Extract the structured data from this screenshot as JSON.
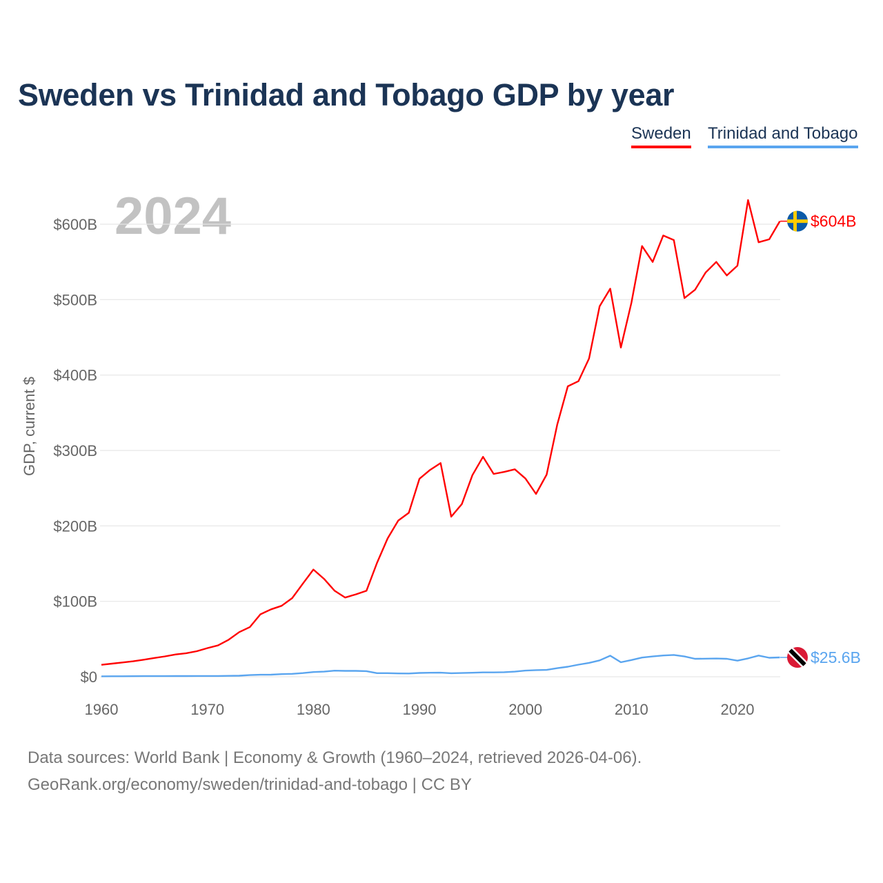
{
  "title": "Sweden vs Trinidad and Tobago GDP by year",
  "year_label": "2024",
  "footer": {
    "line1": "Data sources: World Bank | Economy & Growth (1960–2024, retrieved 2026-04-06).",
    "line2": "GeoRank.org/economy/sweden/trinidad-and-tobago | CC BY"
  },
  "chart_data": {
    "type": "line",
    "title": "Sweden vs Trinidad and Tobago GDP by year",
    "xlabel": "",
    "ylabel": "GDP, current $",
    "xlim": [
      1960,
      2024
    ],
    "ylim": [
      0,
      650
    ],
    "grid": true,
    "legend_placement": "top-right",
    "x_ticks": [
      1960,
      1970,
      1980,
      1990,
      2000,
      2010,
      2020
    ],
    "x_tick_labels": [
      "1960",
      "1970",
      "1980",
      "1990",
      "2000",
      "2010",
      "2020"
    ],
    "y_ticks": [
      0,
      100,
      200,
      300,
      400,
      500,
      600
    ],
    "y_tick_labels": [
      "$0",
      "$100B",
      "$200B",
      "$300B",
      "$400B",
      "$500B",
      "$600B"
    ],
    "units": "billion USD",
    "series": [
      {
        "name": "Sweden",
        "color": "#ff0000",
        "end_label": "$604B",
        "flag": "sweden-flag",
        "start_year": 1960,
        "values": [
          15.8,
          17.4,
          18.9,
          20.5,
          22.6,
          24.9,
          27.0,
          29.5,
          31.2,
          33.8,
          38.0,
          41.5,
          49.0,
          59.2,
          65.8,
          82.8,
          89.4,
          94.0,
          104.3,
          123.4,
          142.1,
          129.8,
          114.0,
          105.0,
          109.2,
          114.0,
          150.9,
          183.4,
          207.1,
          217.3,
          262.4,
          274.2,
          283.3,
          212.2,
          228.9,
          267.3,
          291.6,
          268.9,
          271.6,
          275.0,
          262.8,
          242.4,
          268.0,
          334.4,
          385.1,
          391.8,
          422.0,
          491.2,
          514.5,
          436.5,
          495.8,
          571.0,
          550.0,
          585.0,
          579.0,
          502.0,
          513.0,
          536.0,
          550.0,
          532.0,
          545.0,
          632.0,
          576.0,
          580.0,
          604.0
        ]
      },
      {
        "name": "Trinidad and Tobago",
        "color": "#5aa5ef",
        "end_label": "$25.6B",
        "flag": "trinidad-flag",
        "start_year": 1960,
        "values": [
          0.54,
          0.62,
          0.67,
          0.72,
          0.78,
          0.83,
          0.86,
          0.92,
          0.93,
          0.97,
          0.98,
          1.04,
          1.18,
          1.34,
          2.19,
          2.65,
          2.76,
          3.51,
          3.86,
          4.83,
          6.24,
          6.75,
          8.09,
          7.79,
          7.75,
          7.38,
          4.79,
          4.75,
          4.42,
          4.32,
          5.07,
          5.31,
          5.44,
          4.67,
          4.95,
          5.33,
          5.72,
          5.74,
          6.04,
          6.81,
          8.15,
          8.82,
          9.01,
          11.3,
          13.3,
          15.98,
          18.37,
          21.64,
          27.87,
          19.17,
          22.16,
          25.43,
          26.87,
          28.14,
          28.88,
          26.93,
          23.78,
          23.97,
          24.12,
          23.75,
          21.33,
          24.29,
          28.04,
          25.11,
          25.6
        ]
      }
    ]
  }
}
